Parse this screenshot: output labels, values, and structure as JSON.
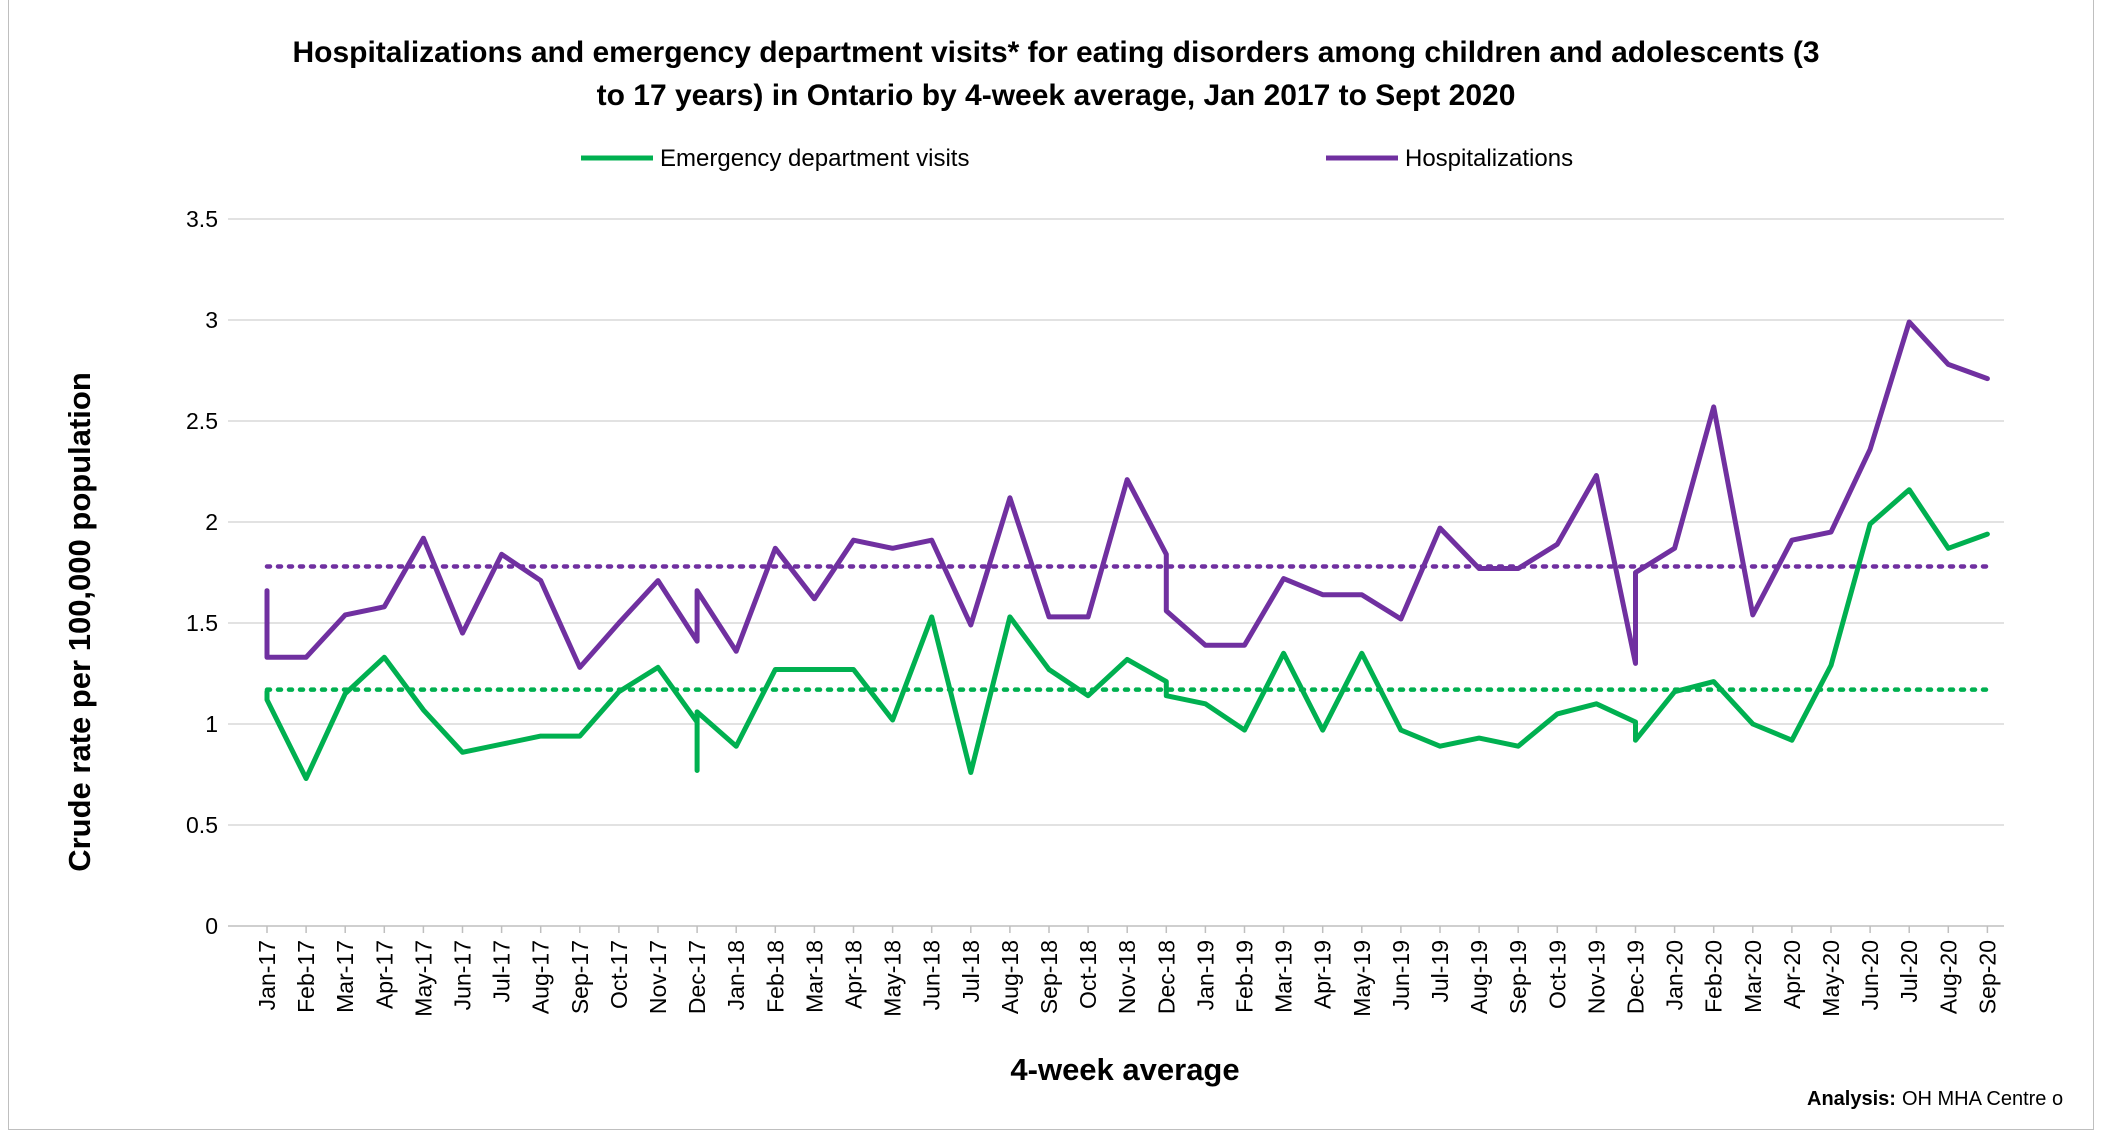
{
  "chart_data": {
    "type": "line",
    "title_line1": "Hospitalizations and emergency department visits* for eating disorders among children and adolescents (3",
    "title_line2": "to 17 years) in Ontario by 4-week average, Jan 2017 to Sept 2020",
    "xlabel": "4-week average",
    "ylabel": "Crude rate per 100,000 population",
    "ylim": [
      0,
      3.5
    ],
    "yticks": [
      "0",
      "0.5",
      "1",
      "1.5",
      "2",
      "2.5",
      "3",
      "3.5"
    ],
    "grid": "horizontal",
    "legend_position": "top",
    "categories": [
      "Jan-17",
      "Feb-17",
      "Mar-17",
      "Apr-17",
      "May-17",
      "Jun-17",
      "Jul-17",
      "Aug-17",
      "Sep-17",
      "Oct-17",
      "Nov-17",
      "Dec-17",
      "Jan-18",
      "Feb-18",
      "Mar-18",
      "Apr-18",
      "May-18",
      "Jun-18",
      "Jul-18",
      "Aug-18",
      "Sep-18",
      "Oct-18",
      "Nov-18",
      "Dec-18",
      "Jan-19",
      "Feb-19",
      "Mar-19",
      "Apr-19",
      "May-19",
      "Jun-19",
      "Jul-19",
      "Aug-19",
      "Sep-19",
      "Oct-19",
      "Nov-19",
      "Dec-19",
      "Jan-20",
      "Feb-20",
      "Mar-20",
      "Apr-20",
      "May-20",
      "Jun-20",
      "Jul-20",
      "Aug-20",
      "Sep-20"
    ],
    "series": [
      {
        "name": "Emergency department visits",
        "color": "#00b050",
        "points": [
          [
            0,
            1.16
          ],
          [
            0,
            1.12
          ],
          [
            1,
            0.73
          ],
          [
            2,
            1.15
          ],
          [
            3,
            1.33
          ],
          [
            4,
            1.07
          ],
          [
            5,
            0.86
          ],
          [
            6,
            0.9
          ],
          [
            7,
            0.94
          ],
          [
            8,
            0.94
          ],
          [
            9,
            1.16
          ],
          [
            10,
            1.28
          ],
          [
            11,
            1.01
          ],
          [
            11,
            0.77
          ],
          [
            11,
            1.06
          ],
          [
            12,
            0.89
          ],
          [
            13,
            1.27
          ],
          [
            14,
            1.27
          ],
          [
            15,
            1.27
          ],
          [
            16,
            1.02
          ],
          [
            17,
            1.53
          ],
          [
            18,
            0.76
          ],
          [
            19,
            1.53
          ],
          [
            20,
            1.27
          ],
          [
            21,
            1.14
          ],
          [
            22,
            1.32
          ],
          [
            23,
            1.21
          ],
          [
            23,
            1.14
          ],
          [
            24,
            1.1
          ],
          [
            25,
            0.97
          ],
          [
            26,
            1.35
          ],
          [
            27,
            0.97
          ],
          [
            28,
            1.35
          ],
          [
            29,
            0.97
          ],
          [
            30,
            0.89
          ],
          [
            31,
            0.93
          ],
          [
            32,
            0.89
          ],
          [
            33,
            1.05
          ],
          [
            34,
            1.1
          ],
          [
            35,
            1.01
          ],
          [
            35,
            0.92
          ],
          [
            36,
            1.16
          ],
          [
            37,
            1.21
          ],
          [
            38,
            1.0
          ],
          [
            39,
            0.92
          ],
          [
            40,
            1.29
          ],
          [
            41,
            1.99
          ],
          [
            42,
            2.16
          ],
          [
            43,
            1.87
          ],
          [
            44,
            1.94
          ]
        ]
      },
      {
        "name": "Hospitalizations",
        "color": "#7030a0",
        "points": [
          [
            0,
            1.66
          ],
          [
            0,
            1.33
          ],
          [
            1,
            1.33
          ],
          [
            2,
            1.54
          ],
          [
            3,
            1.58
          ],
          [
            4,
            1.92
          ],
          [
            5,
            1.45
          ],
          [
            6,
            1.84
          ],
          [
            7,
            1.71
          ],
          [
            8,
            1.28
          ],
          [
            9,
            1.5
          ],
          [
            10,
            1.71
          ],
          [
            11,
            1.41
          ],
          [
            11,
            1.66
          ],
          [
            12,
            1.36
          ],
          [
            13,
            1.87
          ],
          [
            14,
            1.62
          ],
          [
            15,
            1.91
          ],
          [
            16,
            1.87
          ],
          [
            17,
            1.91
          ],
          [
            18,
            1.49
          ],
          [
            19,
            2.12
          ],
          [
            20,
            1.53
          ],
          [
            21,
            1.53
          ],
          [
            22,
            2.21
          ],
          [
            23,
            1.84
          ],
          [
            23,
            1.56
          ],
          [
            24,
            1.39
          ],
          [
            25,
            1.39
          ],
          [
            26,
            1.72
          ],
          [
            27,
            1.64
          ],
          [
            28,
            1.64
          ],
          [
            29,
            1.52
          ],
          [
            30,
            1.97
          ],
          [
            31,
            1.77
          ],
          [
            32,
            1.77
          ],
          [
            33,
            1.89
          ],
          [
            34,
            2.23
          ],
          [
            35,
            1.3
          ],
          [
            35,
            1.75
          ],
          [
            36,
            1.87
          ],
          [
            37,
            2.57
          ],
          [
            38,
            1.54
          ],
          [
            39,
            1.91
          ],
          [
            40,
            1.95
          ],
          [
            41,
            2.36
          ],
          [
            42,
            2.99
          ],
          [
            43,
            2.78
          ],
          [
            44,
            2.71
          ]
        ]
      }
    ],
    "reference_lines": [
      {
        "series": "Emergency department visits",
        "value": 1.17,
        "style": "dotted",
        "color": "#00b050"
      },
      {
        "series": "Hospitalizations",
        "value": 1.78,
        "style": "dotted",
        "color": "#7030a0"
      }
    ]
  },
  "footnote": {
    "label": "Analysis:",
    "text": "OH MHA Centre o"
  }
}
